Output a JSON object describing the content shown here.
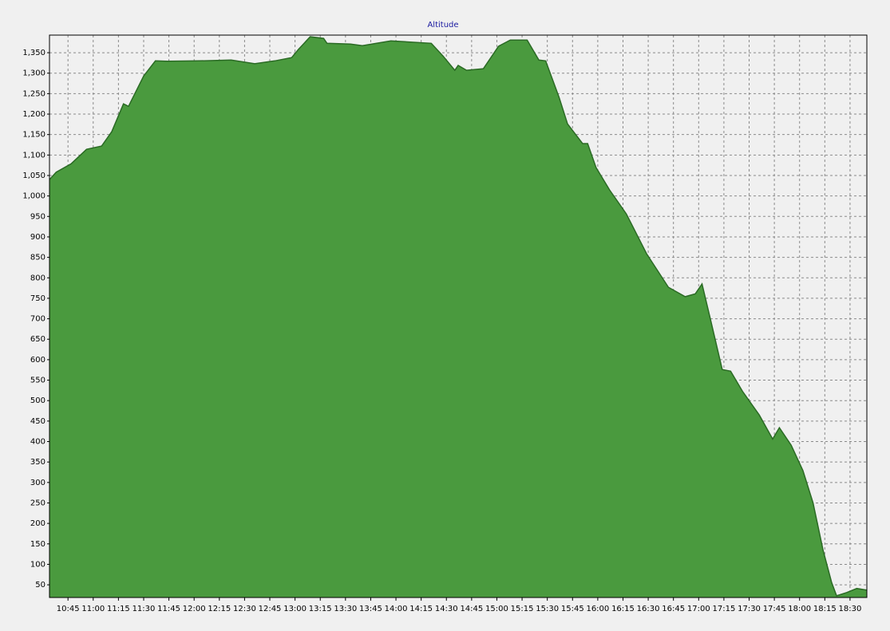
{
  "chart_data": {
    "type": "area",
    "title": "Altitude",
    "x": [
      "10:34",
      "10:38",
      "10:47",
      "10:56",
      "11:05",
      "11:11",
      "11:18",
      "11:21",
      "11:30",
      "11:37",
      "11:44",
      "12:03",
      "12:22",
      "12:36",
      "12:48",
      "12:58",
      "13:02",
      "13:09",
      "13:17",
      "13:19",
      "13:33",
      "13:40",
      "13:57",
      "14:21",
      "14:28",
      "14:35",
      "14:37",
      "14:42",
      "14:52",
      "15:01",
      "15:08",
      "15:18",
      "15:25",
      "15:29",
      "15:37",
      "15:42",
      "15:51",
      "15:54",
      "15:59",
      "16:07",
      "16:17",
      "16:29",
      "16:42",
      "16:52",
      "16:58",
      "17:02",
      "17:07",
      "17:14",
      "17:19",
      "17:26",
      "17:36",
      "17:44",
      "17:48",
      "17:55",
      "18:02",
      "18:08",
      "18:14",
      "18:19",
      "18:22",
      "18:28",
      "18:34",
      "18:40"
    ],
    "values": [
      1040,
      1058,
      1079,
      1114,
      1122,
      1157,
      1225,
      1219,
      1293,
      1330,
      1329,
      1330,
      1332,
      1323,
      1330,
      1338,
      1358,
      1389,
      1385,
      1373,
      1371,
      1367,
      1379,
      1373,
      1342,
      1307,
      1319,
      1307,
      1311,
      1366,
      1381,
      1381,
      1332,
      1330,
      1241,
      1176,
      1128,
      1128,
      1069,
      1015,
      956,
      859,
      777,
      754,
      761,
      785,
      699,
      576,
      572,
      523,
      465,
      406,
      434,
      391,
      329,
      250,
      134,
      56,
      23,
      31,
      41,
      37
    ],
    "color": "#4a9a3e",
    "line_color": "#2a6a24",
    "grid": true,
    "xlim": [
      "10:34",
      "18:40"
    ],
    "xticks": [
      "10:45",
      "11:00",
      "11:15",
      "11:30",
      "11:45",
      "12:00",
      "12:15",
      "12:30",
      "12:45",
      "13:00",
      "13:15",
      "13:30",
      "13:45",
      "14:00",
      "14:15",
      "14:30",
      "14:45",
      "15:00",
      "15:15",
      "15:30",
      "15:45",
      "16:00",
      "16:15",
      "16:30",
      "16:45",
      "17:00",
      "17:15",
      "17:30",
      "17:45",
      "18:00",
      "18:15",
      "18:30"
    ],
    "ylim": [
      19,
      1393
    ],
    "yticks": [
      50,
      100,
      150,
      200,
      250,
      300,
      350,
      400,
      450,
      500,
      550,
      600,
      650,
      700,
      750,
      800,
      850,
      900,
      950,
      {
        "value": 1000,
        "label": "1,000"
      },
      {
        "value": 1050,
        "label": "1,050"
      },
      {
        "value": 1100,
        "label": "1,100"
      },
      {
        "value": 1150,
        "label": "1,150"
      },
      {
        "value": 1200,
        "label": "1,200"
      },
      {
        "value": 1250,
        "label": "1,250"
      },
      {
        "value": 1300,
        "label": "1,300"
      },
      {
        "value": 1350,
        "label": "1,350"
      }
    ]
  }
}
